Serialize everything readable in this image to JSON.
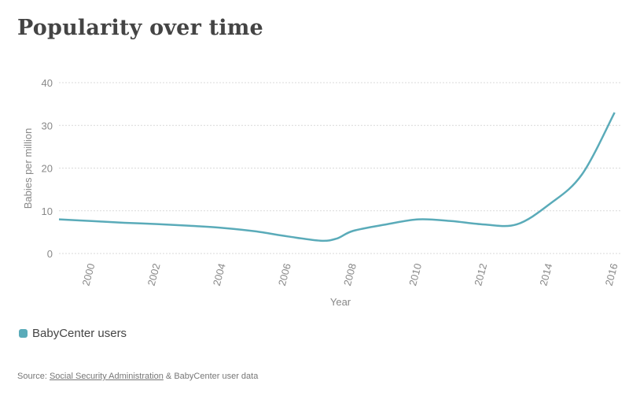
{
  "title": "Popularity over time",
  "legend": {
    "label": "BabyCenter users",
    "color": "#5aabb9"
  },
  "source": {
    "prefix": "Source: ",
    "link_text": "Social Security Administration",
    "suffix": " & BabyCenter user data"
  },
  "chart_data": {
    "type": "line",
    "title": "Popularity over time",
    "xlabel": "Year",
    "ylabel": "Babies per million",
    "xlim": [
      1999,
      2016.2
    ],
    "ylim": [
      0,
      40
    ],
    "yticks": [
      0,
      10,
      20,
      30,
      40
    ],
    "xticks": [
      "2000",
      "2002",
      "2004",
      "2006",
      "2008",
      "2010",
      "2012",
      "2014",
      "2016"
    ],
    "grid": true,
    "legend_position": "bottom-left",
    "series": [
      {
        "name": "BabyCenter users",
        "color": "#5aabb9",
        "x": [
          1999,
          2000,
          2001,
          2002,
          2003,
          2004,
          2005,
          2006,
          2007,
          2007.5,
          2008,
          2009,
          2010,
          2011,
          2012,
          2013,
          2014,
          2015,
          2016
        ],
        "y": [
          8,
          7.6,
          7.2,
          6.9,
          6.5,
          6.0,
          5.2,
          4.0,
          3.0,
          3.5,
          5.3,
          6.8,
          8.0,
          7.6,
          6.8,
          6.8,
          11.5,
          18.5,
          33
        ]
      }
    ]
  }
}
